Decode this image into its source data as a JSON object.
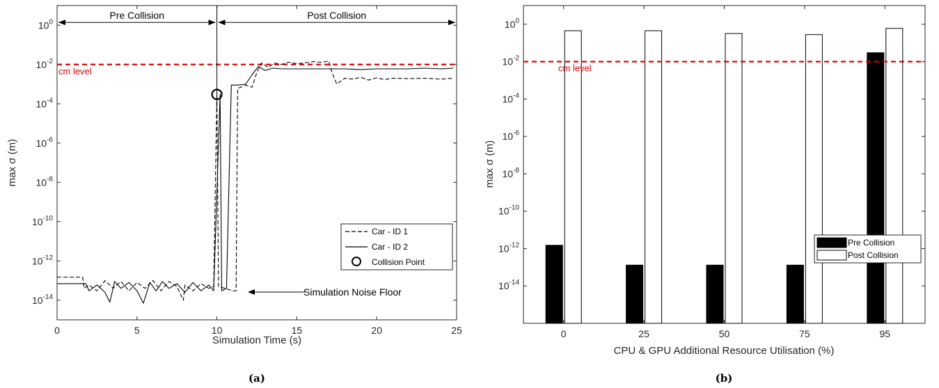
{
  "chart_data": [
    {
      "type": "line",
      "caption": "(a)",
      "xlabel": "Simulation Time (s)",
      "ylabel": "max σ (m)",
      "xlim": [
        0,
        25
      ],
      "ylim_log10": [
        -15,
        1
      ],
      "xticks": [
        "0",
        "5",
        "10",
        "15",
        "20",
        "25"
      ],
      "yticks": [
        {
          "base": "10",
          "exp": "0",
          "p": 0
        },
        {
          "base": "10",
          "exp": "-2",
          "p": -2
        },
        {
          "base": "10",
          "exp": "-4",
          "p": -4
        },
        {
          "base": "10",
          "exp": "-6",
          "p": -6
        },
        {
          "base": "10",
          "exp": "-8",
          "p": -8
        },
        {
          "base": "10",
          "exp": "-10",
          "p": -10
        },
        {
          "base": "10",
          "exp": "-12",
          "p": -12
        },
        {
          "base": "10",
          "exp": "-14",
          "p": -14
        }
      ],
      "threshold": {
        "label": "cm level",
        "value": 0.01,
        "color": "#e00000"
      },
      "regions": {
        "pre": "Pre Collision",
        "post": "Post Collision",
        "split_x": 10
      },
      "noise_label": "Simulation Noise Floor",
      "collision_point": {
        "x": 10,
        "y": 0.0003
      },
      "legend": [
        "Car - ID 1",
        "Car - ID 2",
        "Collision Point"
      ],
      "series": [
        {
          "name": "Car - ID 1",
          "style": "dashed",
          "points": [
            [
              0,
              1.5e-13
            ],
            [
              1.2,
              1.5e-13
            ],
            [
              1.6,
              1.5e-13
            ],
            [
              1.7,
              4e-14
            ],
            [
              2,
              6e-14
            ],
            [
              2.5,
              3e-14
            ],
            [
              3,
              1e-13
            ],
            [
              3.5,
              4e-14
            ],
            [
              4,
              9e-14
            ],
            [
              4.5,
              3e-14
            ],
            [
              5,
              8e-14
            ],
            [
              5.5,
              4e-14
            ],
            [
              6,
              1e-13
            ],
            [
              6.5,
              3e-14
            ],
            [
              7,
              9e-14
            ],
            [
              7.5,
              5e-14
            ],
            [
              7.9,
              1e-14
            ],
            [
              8,
              6e-14
            ],
            [
              8.5,
              3e-14
            ],
            [
              9,
              7e-14
            ],
            [
              9.5,
              4e-14
            ],
            [
              9.8,
              5e-14
            ],
            [
              10,
              0.0003
            ],
            [
              10.1,
              5e-14
            ],
            [
              10.5,
              4e-14
            ],
            [
              11,
              3e-14
            ],
            [
              11.2,
              3e-14
            ],
            [
              11.3,
              0.0006
            ],
            [
              11.8,
              0.0009
            ],
            [
              12.2,
              0.0007
            ],
            [
              12.5,
              0.004
            ],
            [
              12.8,
              0.012
            ],
            [
              13.2,
              0.007
            ],
            [
              13.6,
              0.012
            ],
            [
              14,
              0.01
            ],
            [
              14.5,
              0.013
            ],
            [
              15,
              0.011
            ],
            [
              15.5,
              0.012
            ],
            [
              16,
              0.014
            ],
            [
              16.5,
              0.013
            ],
            [
              17,
              0.015
            ],
            [
              17.2,
              0.004
            ],
            [
              17.5,
              0.001
            ],
            [
              18,
              0.002
            ],
            [
              18.5,
              0.0018
            ],
            [
              19,
              0.0022
            ],
            [
              19.5,
              0.0016
            ],
            [
              20,
              0.0021
            ],
            [
              20.5,
              0.0017
            ],
            [
              21,
              0.002
            ],
            [
              22,
              0.0019
            ],
            [
              23,
              0.002
            ],
            [
              24,
              0.0018
            ],
            [
              24.8,
              0.002
            ]
          ]
        },
        {
          "name": "Car - ID 2",
          "style": "solid",
          "points": [
            [
              0,
              7e-14
            ],
            [
              1.5,
              7e-14
            ],
            [
              1.8,
              7e-14
            ],
            [
              2,
              3e-14
            ],
            [
              2.5,
              6e-14
            ],
            [
              3,
              2.5e-14
            ],
            [
              3.3,
              8e-15
            ],
            [
              3.6,
              9e-14
            ],
            [
              4,
              4e-14
            ],
            [
              4.5,
              8e-14
            ],
            [
              5,
              3e-14
            ],
            [
              5.4,
              7e-15
            ],
            [
              5.8,
              8e-14
            ],
            [
              6.2,
              3e-14
            ],
            [
              6.6,
              9e-14
            ],
            [
              7,
              4e-14
            ],
            [
              7.5,
              7e-14
            ],
            [
              8,
              2.5e-14
            ],
            [
              8.5,
              8e-14
            ],
            [
              9,
              3e-14
            ],
            [
              9.5,
              6e-14
            ],
            [
              9.8,
              3e-14
            ],
            [
              10.2,
              0.0003
            ],
            [
              10.3,
              3e-14
            ],
            [
              10.6,
              4e-14
            ],
            [
              10.9,
              0.0009
            ],
            [
              11.3,
              0.0009
            ],
            [
              11.8,
              0.001
            ],
            [
              12.2,
              0.003
            ],
            [
              12.6,
              0.008
            ],
            [
              13,
              0.005
            ],
            [
              13.5,
              0.0065
            ],
            [
              14,
              0.006
            ],
            [
              15,
              0.006
            ],
            [
              16,
              0.006
            ],
            [
              17,
              0.006
            ],
            [
              18,
              0.006
            ],
            [
              19,
              0.0055
            ],
            [
              20,
              0.006
            ],
            [
              21,
              0.006
            ],
            [
              22,
              0.006
            ],
            [
              23,
              0.0065
            ],
            [
              24,
              0.006
            ],
            [
              24.8,
              0.0065
            ]
          ]
        }
      ]
    },
    {
      "type": "bar",
      "caption": "(b)",
      "xlabel": "CPU & GPU Additional Resource Utilisation (%)",
      "ylabel": "max σ (m)",
      "ylim_log10": [
        -16,
        1
      ],
      "categories": [
        "0",
        "25",
        "50",
        "75",
        "95"
      ],
      "yticks": [
        {
          "base": "10",
          "exp": "0",
          "p": 0
        },
        {
          "base": "10",
          "exp": "-2",
          "p": -2
        },
        {
          "base": "10",
          "exp": "-4",
          "p": -4
        },
        {
          "base": "10",
          "exp": "-6",
          "p": -6
        },
        {
          "base": "10",
          "exp": "-8",
          "p": -8
        },
        {
          "base": "10",
          "exp": "-10",
          "p": -10
        },
        {
          "base": "10",
          "exp": "-12",
          "p": -12
        },
        {
          "base": "10",
          "exp": "-14",
          "p": -14
        }
      ],
      "threshold": {
        "label": "cm level",
        "value": 0.01,
        "color": "#e00000"
      },
      "legend_placement": "right",
      "series": [
        {
          "name": "Pre Collision",
          "color": "#000000",
          "values": [
            1.5e-12,
            1.3e-13,
            1.3e-13,
            1.3e-13,
            0.03
          ]
        },
        {
          "name": "Post Collision",
          "color": "#ffffff",
          "values": [
            0.45,
            0.45,
            0.32,
            0.28,
            0.6
          ]
        }
      ]
    }
  ]
}
